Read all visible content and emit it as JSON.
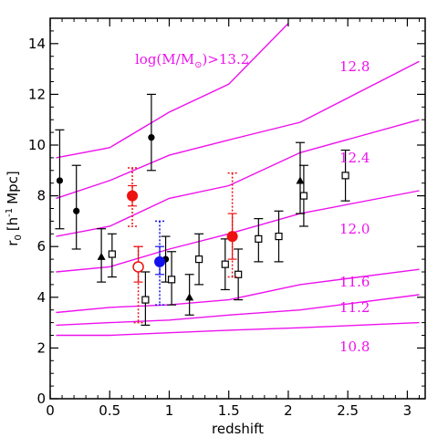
{
  "chart_data": {
    "type": "scatter",
    "xlabel": "redshift",
    "ylabel": "r",
    "ylabel_sub": "0",
    "ylabel_units": "[h",
    "ylabel_sup": "-1",
    "ylabel_tail": "Mpc]",
    "xlim": [
      0,
      3.15
    ],
    "ylim": [
      0,
      15
    ],
    "x_ticks": [
      0,
      0.5,
      1,
      1.5,
      2,
      2.5,
      3
    ],
    "x_tick_labels": [
      "0",
      "0.5",
      "1",
      "1.5",
      "2",
      "2.5",
      "3"
    ],
    "y_ticks": [
      0,
      2,
      4,
      6,
      8,
      10,
      12,
      14
    ],
    "y_tick_labels": [
      "0",
      "2",
      "4",
      "6",
      "8",
      "10",
      "12",
      "14"
    ],
    "grid": false,
    "colors": {
      "curve": "#ee11ee",
      "red": "#ee1111",
      "blue": "#1111ee",
      "black": "#000000"
    },
    "curves": [
      {
        "label": "log(M/M",
        "label_sub": "⊙",
        "label_tail": ")>13.2",
        "x": [
          0.05,
          0.5,
          1.0,
          1.5,
          2.0
        ],
        "y": [
          9.5,
          9.9,
          11.3,
          12.4,
          14.8
        ]
      },
      {
        "label": "12.8",
        "x": [
          0.05,
          0.5,
          1.0,
          1.5,
          2.1,
          3.1
        ],
        "y": [
          7.9,
          8.6,
          9.6,
          10.2,
          10.9,
          13.3
        ]
      },
      {
        "label": "12.4",
        "x": [
          0.05,
          0.5,
          1.0,
          1.5,
          2.1,
          3.1
        ],
        "y": [
          6.4,
          6.8,
          7.9,
          8.4,
          9.7,
          11.0
        ]
      },
      {
        "label": "12.0",
        "x": [
          0.05,
          0.5,
          1.0,
          1.5,
          2.1,
          3.1
        ],
        "y": [
          5.0,
          5.2,
          5.9,
          6.5,
          7.3,
          8.2
        ]
      },
      {
        "label": "11.6",
        "x": [
          0.05,
          0.5,
          1.0,
          1.5,
          2.1,
          3.1
        ],
        "y": [
          3.4,
          3.6,
          3.7,
          3.9,
          4.5,
          5.1
        ]
      },
      {
        "label": "11.2",
        "x": [
          0.05,
          0.5,
          1.0,
          1.5,
          2.1,
          3.1
        ],
        "y": [
          2.9,
          3.0,
          3.1,
          3.3,
          3.5,
          4.1
        ]
      },
      {
        "label": "10.8",
        "x": [
          0.05,
          0.5,
          1.0,
          1.5,
          2.1,
          3.1
        ],
        "y": [
          2.5,
          2.5,
          2.6,
          2.7,
          2.8,
          3.0
        ]
      }
    ],
    "series": [
      {
        "marker": "filled-circle",
        "color": "#000000",
        "points": [
          {
            "x": 0.08,
            "y": 8.6,
            "err_lo": 1.9,
            "err_hi": 2.0
          },
          {
            "x": 0.22,
            "y": 7.4,
            "err_lo": 1.5,
            "err_hi": 1.8
          },
          {
            "x": 0.85,
            "y": 10.3,
            "err_lo": 1.3,
            "err_hi": 1.7
          },
          {
            "x": 0.97,
            "y": 5.5,
            "err_lo": 0.9,
            "err_hi": 0.9
          }
        ]
      },
      {
        "marker": "filled-triangle",
        "color": "#000000",
        "points": [
          {
            "x": 0.43,
            "y": 5.6,
            "err_lo": 1.0,
            "err_hi": 1.1
          },
          {
            "x": 1.17,
            "y": 4.0,
            "err_lo": 0.7,
            "err_hi": 0.9
          },
          {
            "x": 2.1,
            "y": 8.6,
            "err_lo": 1.3,
            "err_hi": 1.5
          }
        ]
      },
      {
        "marker": "open-square",
        "color": "#000000",
        "points": [
          {
            "x": 0.52,
            "y": 5.7,
            "err_lo": 0.9,
            "err_hi": 0.8
          },
          {
            "x": 0.8,
            "y": 3.9,
            "err_lo": 1.0,
            "err_hi": 1.1
          },
          {
            "x": 1.02,
            "y": 4.7,
            "err_lo": 1.0,
            "err_hi": 1.1
          },
          {
            "x": 1.25,
            "y": 5.5,
            "err_lo": 1.0,
            "err_hi": 1.0
          },
          {
            "x": 1.47,
            "y": 5.3,
            "err_lo": 1.0,
            "err_hi": 1.0
          },
          {
            "x": 1.58,
            "y": 4.9,
            "err_lo": 1.0,
            "err_hi": 1.0
          },
          {
            "x": 1.75,
            "y": 6.3,
            "err_lo": 0.9,
            "err_hi": 0.8
          },
          {
            "x": 1.92,
            "y": 6.4,
            "err_lo": 1.0,
            "err_hi": 1.0
          },
          {
            "x": 2.13,
            "y": 8.0,
            "err_lo": 1.2,
            "err_hi": 1.2
          },
          {
            "x": 2.48,
            "y": 8.8,
            "err_lo": 1.0,
            "err_hi": 1.0
          }
        ]
      },
      {
        "marker": "big-filled-circle",
        "color": "#ee1111",
        "points": [
          {
            "x": 0.69,
            "y": 8.0,
            "err_lo": 0.4,
            "err_hi": 0.4,
            "derr_lo": 1.2,
            "derr_hi": 1.1
          },
          {
            "x": 1.53,
            "y": 6.4,
            "err_lo": 0.9,
            "err_hi": 0.9,
            "derr_lo": 1.6,
            "derr_hi": 2.5
          }
        ]
      },
      {
        "marker": "big-open-circle",
        "color": "#ee1111",
        "points": [
          {
            "x": 0.74,
            "y": 5.2,
            "err_lo": 0.6,
            "err_hi": 0.8,
            "derr_lo": 2.2,
            "derr_hi": 0.8
          }
        ]
      },
      {
        "marker": "big-filled-circle",
        "color": "#1111ee",
        "points": [
          {
            "x": 0.92,
            "y": 5.4,
            "err_lo": 0.5,
            "err_hi": 0.6,
            "derr_lo": 1.7,
            "derr_hi": 1.6
          }
        ]
      }
    ]
  }
}
